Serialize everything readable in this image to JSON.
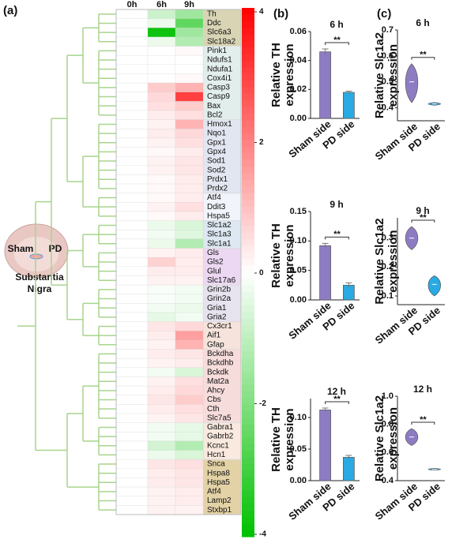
{
  "chart_data": [
    {
      "type": "heatmap",
      "panel_label": "(a)",
      "annotations": [
        "Sham",
        "PD",
        "Substantia",
        "Nigra"
      ],
      "x": [
        "0h",
        "6h",
        "9h"
      ],
      "categories": [
        "Th",
        "Ddc",
        "Slc6a3",
        "Slc18a2",
        "Pink1",
        "Ndufs1",
        "Ndufa1",
        "Cox4i1",
        "Casp3",
        "Casp9",
        "Bax",
        "Bcl2",
        "Hmox1",
        "Nqo1",
        "Gpx1",
        "Gpx4",
        "Sod1",
        "Sod2",
        "Prdx1",
        "Prdx2",
        "Atf4",
        "Ddit3",
        "Hspa5",
        "Slc1a2",
        "Slc1a3",
        "Slc1a1",
        "Gls",
        "Gls2",
        "Glul",
        "Slc17a6",
        "Grin2b",
        "Grin2a",
        "Gria1",
        "Gria2",
        "Cx3cr1",
        "Aif1",
        "Gfap",
        "Bckdha",
        "Bckdhb",
        "Bckdk",
        "Mat2a",
        "Ahcy",
        "Cbs",
        "Cth",
        "Slc7a5",
        "Gabra1",
        "Gabrb2",
        "Kcnc1",
        "Hcn1",
        "Snca",
        "Hspa8",
        "Hspa5",
        "Atf4",
        "Lamp2",
        "Stxbp1"
      ],
      "values": [
        [
          0,
          -0.8,
          -1.5
        ],
        [
          0,
          -0.3,
          -2.5
        ],
        [
          0,
          -3.8,
          -1.5
        ],
        [
          0,
          -0.3,
          -1.2
        ],
        [
          0,
          0,
          0.1
        ],
        [
          0,
          0,
          0
        ],
        [
          0,
          0,
          0
        ],
        [
          0,
          0,
          0.1
        ],
        [
          0,
          0.8,
          1.2
        ],
        [
          0,
          0.6,
          3.0
        ],
        [
          0,
          0.5,
          0.8
        ],
        [
          0,
          0.3,
          0.5
        ],
        [
          0,
          0.2,
          1.2
        ],
        [
          0,
          0.3,
          0.6
        ],
        [
          0,
          0.2,
          0.5
        ],
        [
          0,
          0.1,
          0.3
        ],
        [
          0,
          0.2,
          0.4
        ],
        [
          0,
          0.2,
          0.4
        ],
        [
          0,
          0.1,
          0.3
        ],
        [
          0,
          0.1,
          0.3
        ],
        [
          0,
          0.1,
          0.3
        ],
        [
          0,
          0.2,
          0.5
        ],
        [
          0,
          0.1,
          0.3
        ],
        [
          0,
          -0.3,
          -0.6
        ],
        [
          0,
          -0.2,
          -0.5
        ],
        [
          0,
          -0.3,
          -1.2
        ],
        [
          0,
          0.2,
          0.3
        ],
        [
          0,
          0.7,
          0.3
        ],
        [
          0,
          0.3,
          0.3
        ],
        [
          0,
          0.2,
          0.2
        ],
        [
          0,
          -0.1,
          -0.2
        ],
        [
          0,
          -0.1,
          -0.2
        ],
        [
          0,
          -0.2,
          -0.3
        ],
        [
          0,
          -0.4,
          -0.2
        ],
        [
          0,
          0.4,
          0.6
        ],
        [
          0,
          0.3,
          1.5
        ],
        [
          0,
          0.2,
          1.2
        ],
        [
          0,
          0.3,
          0.4
        ],
        [
          0,
          0.2,
          0.3
        ],
        [
          0,
          -0.2,
          -0.6
        ],
        [
          0,
          0.2,
          0.5
        ],
        [
          0,
          0.3,
          0.6
        ],
        [
          0,
          0.4,
          0.8
        ],
        [
          0,
          0.3,
          0.5
        ],
        [
          0,
          0.2,
          0.4
        ],
        [
          0,
          -0.2,
          -0.4
        ],
        [
          0,
          -0.2,
          -0.4
        ],
        [
          0,
          -0.7,
          -1.2
        ],
        [
          0,
          -0.3,
          -0.6
        ],
        [
          0,
          0.4,
          0.5
        ],
        [
          0,
          0.3,
          0.4
        ],
        [
          0,
          0.3,
          0.4
        ],
        [
          0,
          0.2,
          0.3
        ],
        [
          0,
          0.2,
          0.3
        ],
        [
          0,
          0.2,
          0.2
        ]
      ],
      "zlim": [
        -4,
        4
      ],
      "colorbar_ticks": [
        4,
        2,
        0,
        -2,
        -4
      ],
      "colors": {
        "low": "#00c000",
        "mid": "#ffffff",
        "high": "#ff0000"
      },
      "row_group_colors": [
        "#d8d4b4",
        "#e2eeec",
        "#e2e6f0",
        "#f1f4fa",
        "#dde8f2",
        "#ecd8f2",
        "#e6e2ee",
        "#f6e4dc",
        "#f7dcdc",
        "#f9e9de",
        "#e2d2a6"
      ],
      "dendrogram_color": "#a8d48c"
    },
    {
      "type": "bar",
      "panel_label": "(b)",
      "title": "6 h",
      "ylabel": [
        "Relative TH",
        "expression"
      ],
      "annotation": "**",
      "categories": [
        "Sham side",
        "PD side"
      ],
      "values": [
        0.046,
        0.018
      ],
      "errors": [
        0.002,
        0.0008
      ],
      "colors": [
        "#8e7cc3",
        "#29aae2"
      ],
      "ylim": [
        0,
        0.06
      ],
      "yticks": [
        {
          "value": 0,
          "label": "0.00"
        },
        0.02,
        0.04,
        0.06
      ]
    },
    {
      "type": "violin",
      "panel_label": "(c)",
      "title": "6 h",
      "ylabel": [
        "Relative Slc1a2",
        "expression"
      ],
      "annotation": "**",
      "categories": [
        "Sham side",
        "PD side"
      ],
      "values": [
        0.5,
        0.415
      ],
      "ranges": [
        [
          0.42,
          0.57
        ],
        [
          0.41,
          0.42
        ]
      ],
      "colors": [
        "#8e7cc3",
        "#29aae2"
      ],
      "ylim": [
        0.35,
        0.7
      ],
      "yticks": [
        0.4,
        0.5,
        0.6,
        0.7
      ]
    },
    {
      "type": "bar",
      "title": "9 h",
      "ylabel": [
        "Relative TH",
        "expression"
      ],
      "annotation": "**",
      "categories": [
        "Sham side",
        "PD side"
      ],
      "values": [
        0.092,
        0.025
      ],
      "errors": [
        0.004,
        0.004
      ],
      "colors": [
        "#8e7cc3",
        "#29aae2"
      ],
      "ylim": [
        0,
        0.15
      ],
      "yticks": [
        {
          "value": 0,
          "label": "0.00"
        },
        0.05,
        {
          "value": 0.1,
          "label": "0.10"
        },
        0.15
      ]
    },
    {
      "type": "violin",
      "title": "9 h",
      "ylabel": [
        "Relative Slc1a2",
        "expression"
      ],
      "annotation": "**",
      "categories": [
        "Sham side",
        "PD side"
      ],
      "values": [
        0.3,
        0.14
      ],
      "ranges": [
        [
          0.26,
          0.34
        ],
        [
          0.1,
          0.17
        ]
      ],
      "colors": [
        "#8e7cc3",
        "#29aae2"
      ],
      "ylim": [
        0.07,
        0.37
      ],
      "yticks": [
        0.1,
        0.2,
        0.3
      ]
    },
    {
      "type": "bar",
      "title": "12 h",
      "ylabel": [
        "Relative TH",
        "expression"
      ],
      "annotation": "**",
      "categories": [
        "Sham side",
        "PD side"
      ],
      "values": [
        0.112,
        0.037
      ],
      "errors": [
        0.003,
        0.003
      ],
      "colors": [
        "#8e7cc3",
        "#29aae2"
      ],
      "ylim": [
        0,
        0.13
      ],
      "yticks": [
        {
          "value": 0,
          "label": "0.00"
        },
        0.05,
        {
          "value": 0.1,
          "label": "0.10"
        }
      ]
    },
    {
      "type": "violin",
      "title": "12 h",
      "ylabel": [
        "Relative Slc1a2",
        "expression"
      ],
      "annotation": "**",
      "categories": [
        "Sham side",
        "PD side"
      ],
      "values": [
        0.71,
        0.48
      ],
      "ranges": [
        [
          0.65,
          0.77
        ],
        [
          0.475,
          0.487
        ]
      ],
      "colors": [
        "#8e7cc3",
        "#29aae2"
      ],
      "ylim": [
        0.4,
        1.0
      ],
      "yticks": [
        0.4,
        0.6,
        0.8,
        {
          "value": 1,
          "label": "1.0"
        }
      ]
    }
  ]
}
